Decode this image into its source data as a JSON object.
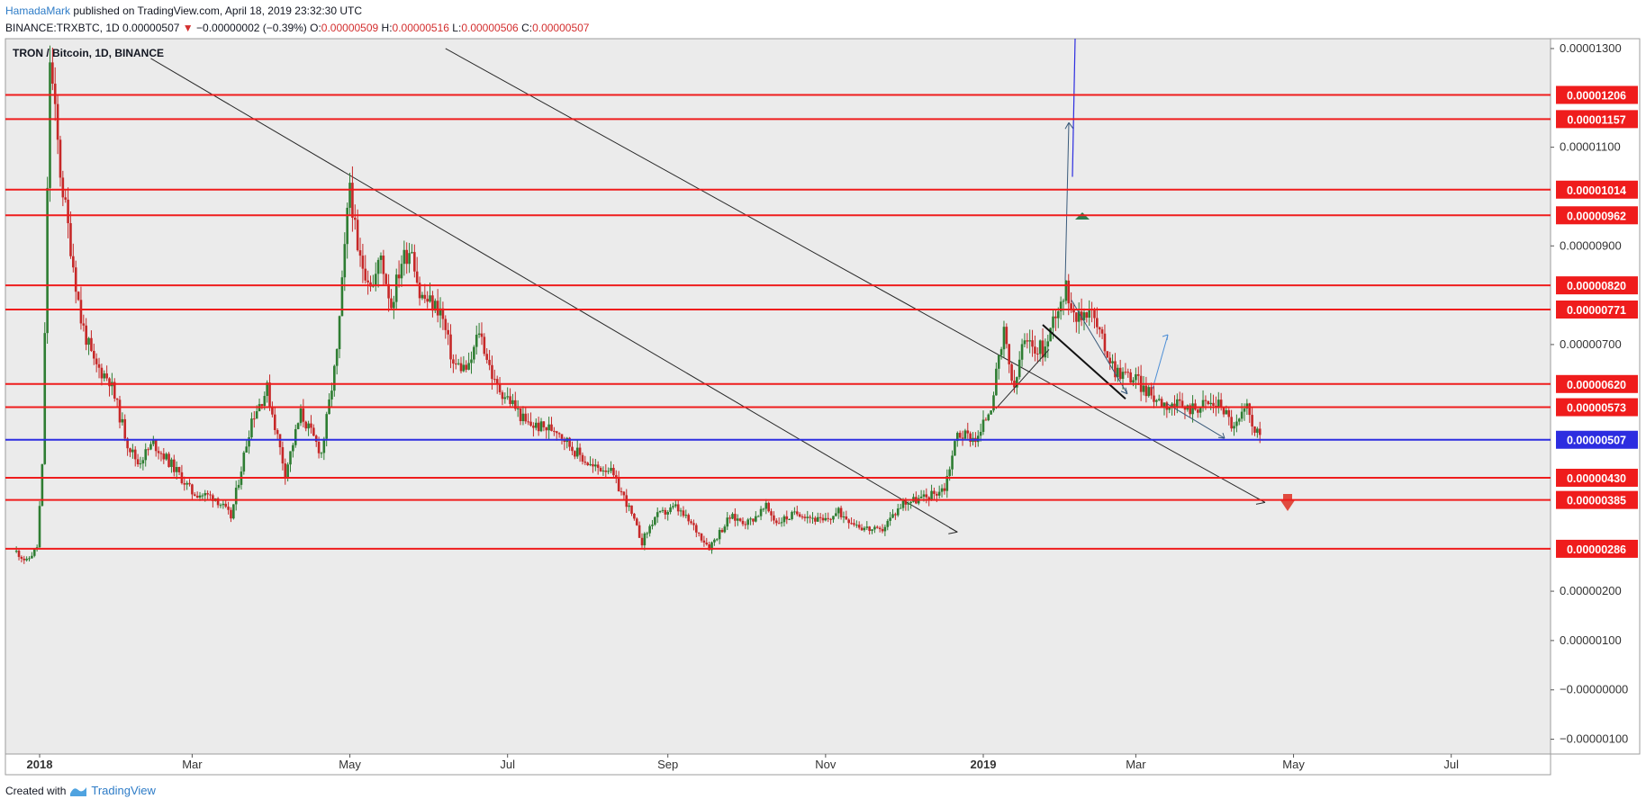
{
  "header": {
    "author": "HamadaMark",
    "published": " published on TradingView.com, April 18, 2019 23:32:30 UTC",
    "symbol_line": "BINANCE:TRXBTC, 1D",
    "last": "0.00000507",
    "change_arrow": "▼",
    "change": "−0.00000002 (−0.39%)",
    "o_label": "O:",
    "o": "0.00000509",
    "h_label": "H:",
    "h": "0.00000516",
    "l_label": "L:",
    "l": "0.00000506",
    "c_label": "C:",
    "c": "0.00000507"
  },
  "footer": {
    "created": "Created with",
    "brand": "TradingView"
  },
  "colors": {
    "bull": "#2e7d32",
    "bear": "#c62828",
    "level": "#ef1c1c",
    "current": "#2d2de0",
    "bg": "#ebebeb"
  },
  "chart_data": {
    "type": "candlestick",
    "title": "TRON / Bitcoin, 1D, BINANCE",
    "ylim": [
      -1.3e-06,
      1.32e-05
    ],
    "y_ticks": [
      {
        "label": "0.00001300",
        "v": 1.3e-05
      },
      {
        "label": "0.00001100",
        "v": 1.1e-05
      },
      {
        "label": "0.00000900",
        "v": 9e-06
      },
      {
        "label": "0.00000700",
        "v": 7e-06
      },
      {
        "label": "0.00000200",
        "v": 2e-06
      },
      {
        "label": "0.00000100",
        "v": 1e-06
      },
      {
        "label": "−0.00000000",
        "v": 0
      },
      {
        "label": "−0.00000100",
        "v": -1e-06
      }
    ],
    "x_ticks": [
      {
        "label": "2018",
        "bold": true,
        "date": "2018-01-01"
      },
      {
        "label": "Mar",
        "date": "2018-03-01"
      },
      {
        "label": "May",
        "date": "2018-05-01"
      },
      {
        "label": "Jul",
        "date": "2018-07-01"
      },
      {
        "label": "Sep",
        "date": "2018-09-01"
      },
      {
        "label": "Nov",
        "date": "2018-11-01"
      },
      {
        "label": "2019",
        "bold": true,
        "date": "2019-01-01"
      },
      {
        "label": "Mar",
        "date": "2019-03-01"
      },
      {
        "label": "May",
        "date": "2019-05-01"
      },
      {
        "label": "Jul",
        "date": "2019-07-01"
      }
    ],
    "levels": [
      {
        "label": "0.00001206",
        "v": 1.206e-05
      },
      {
        "label": "0.00001157",
        "v": 1.157e-05
      },
      {
        "label": "0.00001014",
        "v": 1.014e-05
      },
      {
        "label": "0.00000962",
        "v": 9.62e-06
      },
      {
        "label": "0.00000820",
        "v": 8.2e-06
      },
      {
        "label": "0.00000771",
        "v": 7.71e-06
      },
      {
        "label": "0.00000620",
        "v": 6.2e-06
      },
      {
        "label": "0.00000573",
        "v": 5.73e-06
      },
      {
        "label": "0.00000430",
        "v": 4.3e-06
      },
      {
        "label": "0.00000385",
        "v": 3.85e-06
      },
      {
        "label": "0.00000286",
        "v": 2.86e-06
      }
    ],
    "current_price": {
      "label": "0.00000507",
      "v": 5.07e-06
    },
    "price_path": [
      [
        "2017-12-23",
        2.8e-06
      ],
      [
        "2017-12-27",
        2.6e-06
      ],
      [
        "2017-12-31",
        2.9e-06
      ],
      [
        "2018-01-02",
        4.5e-06
      ],
      [
        "2018-01-05",
        1.28e-05
      ],
      [
        "2018-01-09",
        1.05e-05
      ],
      [
        "2018-01-13",
        9e-06
      ],
      [
        "2018-01-17",
        7.5e-06
      ],
      [
        "2018-01-22",
        6.6e-06
      ],
      [
        "2018-01-28",
        6.3e-06
      ],
      [
        "2018-02-04",
        5e-06
      ],
      [
        "2018-02-08",
        4.6e-06
      ],
      [
        "2018-02-14",
        5e-06
      ],
      [
        "2018-02-22",
        4.5e-06
      ],
      [
        "2018-03-01",
        4e-06
      ],
      [
        "2018-03-10",
        3.9e-06
      ],
      [
        "2018-03-16",
        3.5e-06
      ],
      [
        "2018-03-24",
        5.5e-06
      ],
      [
        "2018-03-30",
        6.1e-06
      ],
      [
        "2018-04-06",
        4.4e-06
      ],
      [
        "2018-04-12",
        5.6e-06
      ],
      [
        "2018-04-20",
        4.8e-06
      ],
      [
        "2018-04-26",
        6.8e-06
      ],
      [
        "2018-05-01",
        1.03e-05
      ],
      [
        "2018-05-04",
        8.8e-06
      ],
      [
        "2018-05-10",
        8.2e-06
      ],
      [
        "2018-05-13",
        8.8e-06
      ],
      [
        "2018-05-17",
        7.8e-06
      ],
      [
        "2018-05-21",
        8.7e-06
      ],
      [
        "2018-05-25",
        9e-06
      ],
      [
        "2018-05-28",
        8e-06
      ],
      [
        "2018-06-05",
        7.7e-06
      ],
      [
        "2018-06-10",
        6.6e-06
      ],
      [
        "2018-06-16",
        6.5e-06
      ],
      [
        "2018-06-20",
        7.3e-06
      ],
      [
        "2018-06-26",
        6.2e-06
      ],
      [
        "2018-07-03",
        5.8e-06
      ],
      [
        "2018-07-08",
        5.4e-06
      ],
      [
        "2018-07-16",
        5.3e-06
      ],
      [
        "2018-07-20",
        5.3e-06
      ],
      [
        "2018-07-26",
        4.9e-06
      ],
      [
        "2018-08-03",
        4.5e-06
      ],
      [
        "2018-08-09",
        4.5e-06
      ],
      [
        "2018-08-16",
        3.8e-06
      ],
      [
        "2018-08-22",
        3e-06
      ],
      [
        "2018-08-27",
        3.5e-06
      ],
      [
        "2018-09-04",
        3.7e-06
      ],
      [
        "2018-09-11",
        3.3e-06
      ],
      [
        "2018-09-17",
        2.9e-06
      ],
      [
        "2018-09-25",
        3.5e-06
      ],
      [
        "2018-10-02",
        3.4e-06
      ],
      [
        "2018-10-09",
        3.7e-06
      ],
      [
        "2018-10-13",
        3.4e-06
      ],
      [
        "2018-10-22",
        3.6e-06
      ],
      [
        "2018-10-31",
        3.4e-06
      ],
      [
        "2018-11-06",
        3.6e-06
      ],
      [
        "2018-11-15",
        3.3e-06
      ],
      [
        "2018-11-22",
        3.2e-06
      ],
      [
        "2018-12-01",
        3.8e-06
      ],
      [
        "2018-12-10",
        3.9e-06
      ],
      [
        "2018-12-17",
        4.1e-06
      ],
      [
        "2018-12-22",
        5.2e-06
      ],
      [
        "2018-12-30",
        5.1e-06
      ],
      [
        "2019-01-04",
        5.8e-06
      ],
      [
        "2019-01-09",
        7.2e-06
      ],
      [
        "2019-01-13",
        6e-06
      ],
      [
        "2019-01-16",
        7e-06
      ],
      [
        "2019-01-25",
        6.9e-06
      ],
      [
        "2019-01-29",
        7.7e-06
      ],
      [
        "2019-02-02",
        8.1e-06
      ],
      [
        "2019-02-07",
        7.5e-06
      ],
      [
        "2019-02-11",
        7.8e-06
      ],
      [
        "2019-02-15",
        7.2e-06
      ],
      [
        "2019-02-21",
        6.5e-06
      ],
      [
        "2019-03-01",
        6.3e-06
      ],
      [
        "2019-03-06",
        6e-06
      ],
      [
        "2019-03-13",
        5.8e-06
      ],
      [
        "2019-03-21",
        5.7e-06
      ],
      [
        "2019-03-28",
        5.8e-06
      ],
      [
        "2019-04-03",
        5.8e-06
      ],
      [
        "2019-04-08",
        5.3e-06
      ],
      [
        "2019-04-13",
        5.7e-06
      ],
      [
        "2019-04-18",
        5.07e-06
      ]
    ]
  }
}
